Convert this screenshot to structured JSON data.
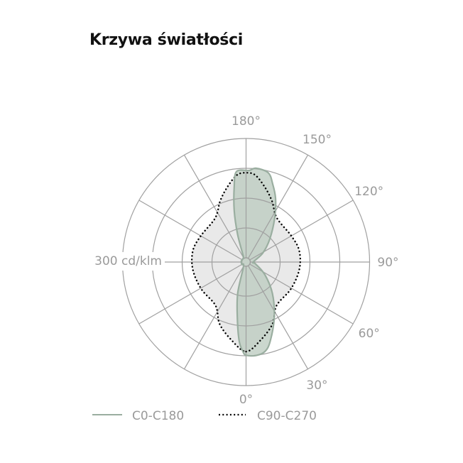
{
  "title": "Krzywa światłości",
  "chart_data": {
    "type": "polar",
    "title": "Krzywa światłości",
    "radial_label": "300 cd/klm",
    "radial_rings": [
      100,
      200,
      300,
      400
    ],
    "radial_max": 400,
    "angle_labels": [
      "0°",
      "30°",
      "60°",
      "90°",
      "120°",
      "150°",
      "180°"
    ],
    "angle_label_values": [
      0,
      30,
      60,
      90,
      120,
      150,
      180
    ],
    "spoke_step_deg": 30,
    "grid": true,
    "legend_position": "bottom",
    "colors": {
      "grid": "#a0a0a0",
      "c0_stroke": "#9aaea0",
      "c0_fill": "#b9cabd",
      "c90_stroke": "#000000",
      "c90_fill": "#e9e9e9",
      "text": "#9a9a9a"
    },
    "series": [
      {
        "name": "C90-C270",
        "style": "dotted",
        "points": [
          [
            0,
            286
          ],
          [
            10,
            254
          ],
          [
            23,
            212
          ],
          [
            35,
            164
          ],
          [
            59,
            161
          ],
          [
            82,
            166
          ],
          [
            102,
            168
          ],
          [
            120,
            161
          ],
          [
            145,
            166
          ],
          [
            157,
            208
          ],
          [
            166,
            245
          ],
          [
            174,
            279
          ],
          [
            180,
            285
          ],
          [
            186,
            279
          ],
          [
            194,
            245
          ],
          [
            203,
            208
          ],
          [
            215,
            166
          ],
          [
            240,
            161
          ],
          [
            258,
            168
          ],
          [
            278,
            166
          ],
          [
            301,
            161
          ],
          [
            325,
            164
          ],
          [
            337,
            212
          ],
          [
            350,
            254
          ]
        ]
      },
      {
        "name": "C0-C180",
        "style": "solid",
        "points": [
          [
            0,
            298
          ],
          [
            6,
            301
          ],
          [
            12,
            292
          ],
          [
            17,
            263
          ],
          [
            27,
            194
          ],
          [
            40,
            123
          ],
          [
            56,
            62
          ],
          [
            79,
            18
          ],
          [
            90,
            10
          ],
          [
            118,
            49
          ],
          [
            134,
            96
          ],
          [
            147,
            162
          ],
          [
            155,
            220
          ],
          [
            161,
            261
          ],
          [
            166,
            294
          ],
          [
            174,
            302
          ],
          [
            178,
            293
          ],
          [
            186,
            291
          ],
          [
            189,
            240
          ],
          [
            193,
            162
          ],
          [
            197,
            83
          ],
          [
            202,
            17
          ],
          [
            210,
            3
          ],
          [
            260,
            2
          ],
          [
            300,
            2
          ],
          [
            330,
            3
          ],
          [
            345,
            94
          ],
          [
            351,
            173
          ],
          [
            355,
            251
          ],
          [
            358,
            286
          ]
        ]
      }
    ]
  }
}
